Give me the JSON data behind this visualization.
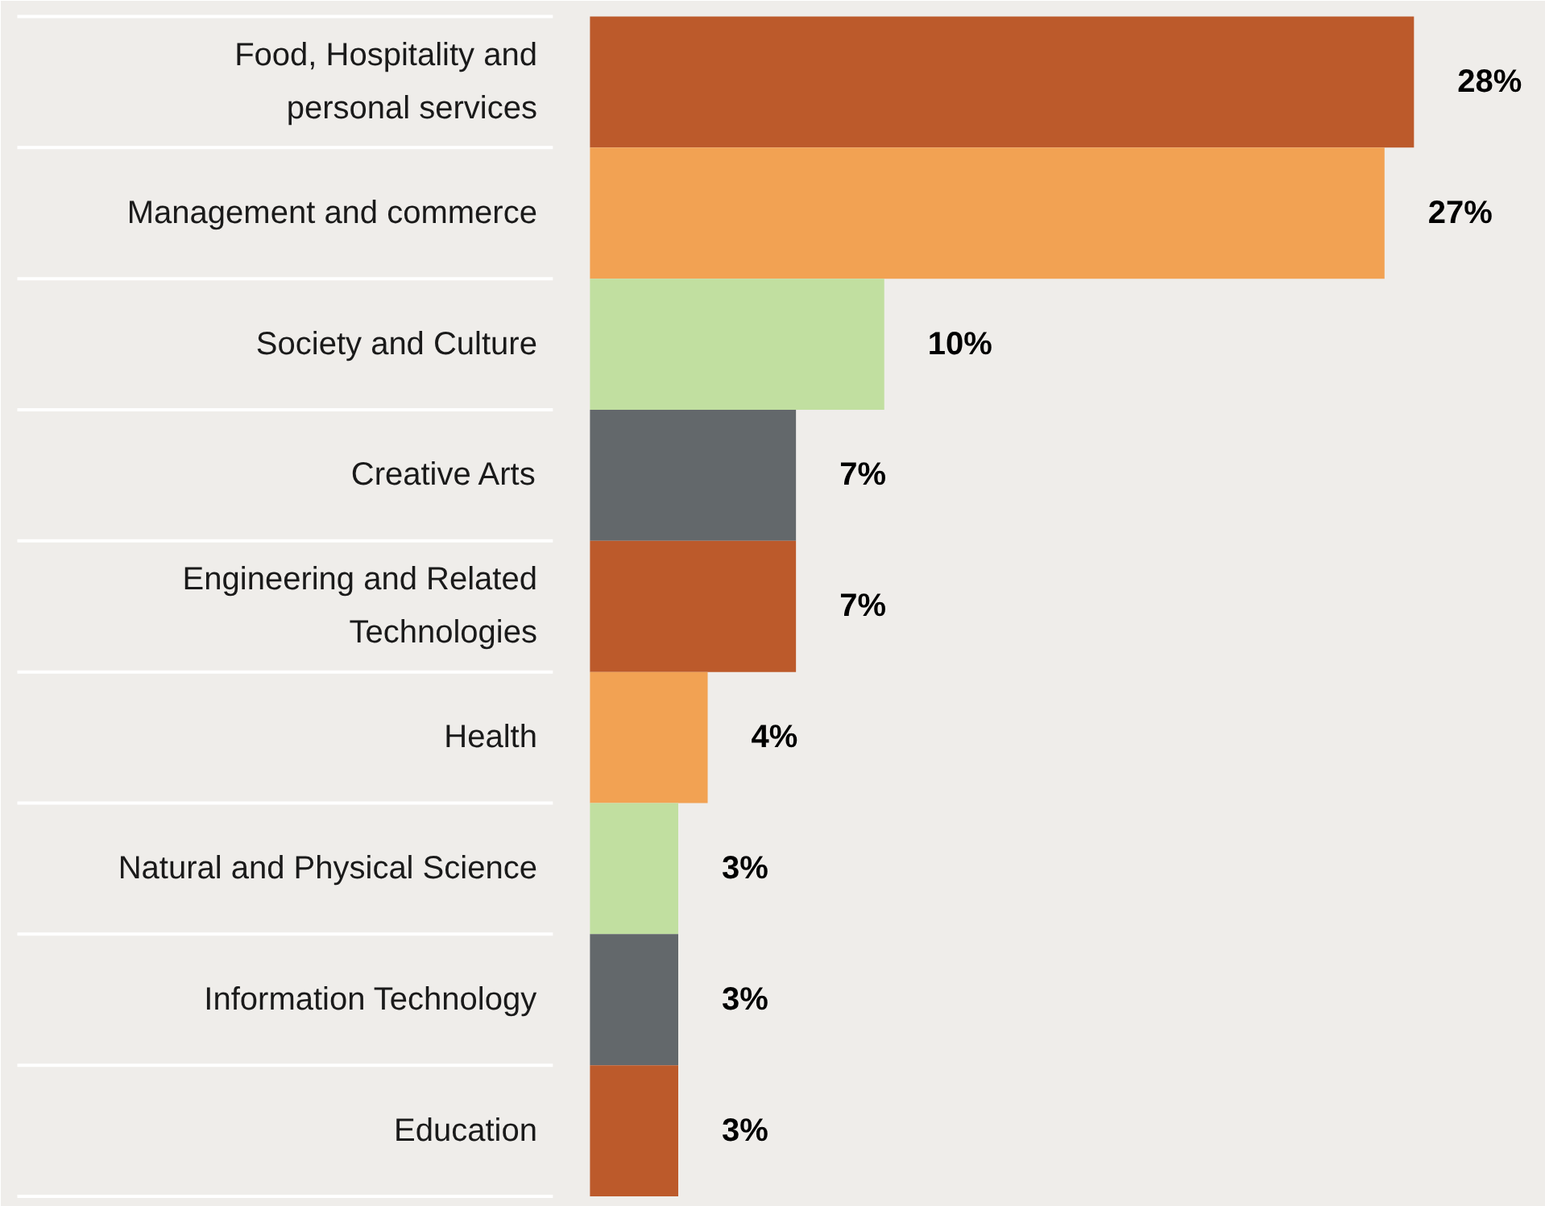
{
  "chart_data": {
    "type": "bar",
    "orientation": "horizontal",
    "categories": [
      "Food, Hospitality and personal services",
      "Management and commerce",
      "Society and Culture",
      "Creative Arts",
      "Engineering and Related Technologies",
      "Health",
      "Natural and Physical Science",
      "Information Technology",
      "Education"
    ],
    "values": [
      28,
      27,
      10,
      7,
      7,
      4,
      3,
      3,
      3
    ],
    "value_labels": [
      "28%",
      "27%",
      "10%",
      "7%",
      "7%",
      "4%",
      "3%",
      "3%",
      "3%"
    ],
    "colors": [
      "#bc5a2b",
      "#f2a253",
      "#c1dfa0",
      "#63686b",
      "#bc5a2b",
      "#f2a253",
      "#c1dfa0",
      "#63686b",
      "#bc5a2b"
    ]
  }
}
